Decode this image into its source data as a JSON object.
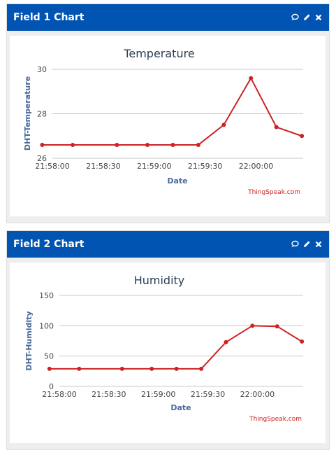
{
  "panels": [
    {
      "title": "Field 1 Chart",
      "chart_data": {
        "type": "line",
        "title": "Temperature",
        "xlabel": "Date",
        "ylabel": "DHT-Temperature",
        "ylim": [
          26,
          30
        ],
        "yticks": [
          "30",
          "28",
          "26"
        ],
        "xticks": [
          "21:58:00",
          "21:58:30",
          "21:59:00",
          "21:59:30",
          "22:00:00"
        ],
        "x": [
          "21:57:54",
          "21:58:12",
          "21:58:38",
          "21:58:56",
          "21:59:11",
          "21:59:26",
          "21:59:41",
          "21:59:57",
          "22:00:12",
          "22:00:27"
        ],
        "series": [
          {
            "values": [
              26.6,
              26.6,
              26.6,
              26.6,
              26.6,
              26.6,
              27.5,
              29.6,
              27.4,
              27.0
            ]
          }
        ],
        "credit": "ThingSpeak.com",
        "line_color": "#cc2222"
      }
    },
    {
      "title": "Field 2 Chart",
      "chart_data": {
        "type": "line",
        "title": "Humidity",
        "xlabel": "Date",
        "ylabel": "DHT-Humidity",
        "ylim": [
          0,
          150
        ],
        "yticks": [
          "150",
          "100",
          "50",
          "0"
        ],
        "xticks": [
          "21:58:00",
          "21:58:30",
          "21:59:00",
          "21:59:30",
          "22:00:00"
        ],
        "x": [
          "21:57:54",
          "21:58:12",
          "21:58:38",
          "21:58:56",
          "21:59:11",
          "21:59:26",
          "21:59:41",
          "21:59:57",
          "22:00:12",
          "22:00:27"
        ],
        "series": [
          {
            "values": [
              29,
              29,
              29,
              29,
              29,
              29,
              73,
              100,
              99,
              74
            ]
          }
        ],
        "credit": "ThingSpeak.com",
        "line_color": "#cc2222"
      }
    }
  ],
  "colors": {
    "header": "#0254b2",
    "title_text": "#2a3f56",
    "axis_title": "#4a6a9a",
    "credit": "#cc2222"
  },
  "icons": [
    "comment-icon",
    "pencil-icon",
    "close-icon"
  ]
}
